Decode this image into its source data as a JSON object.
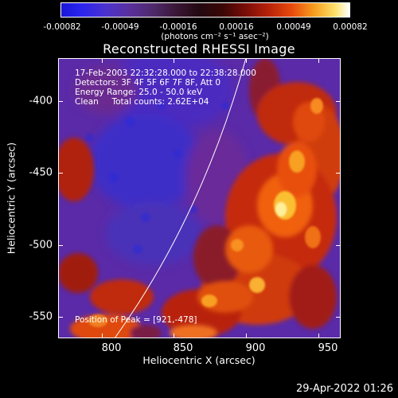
{
  "colorbar": {
    "ticks": [
      "-0.00082",
      "-0.00049",
      "-0.00016",
      "0.00016",
      "0.00049",
      "0.00082"
    ],
    "units": "(photons cm⁻² s⁻¹ asec⁻²)"
  },
  "title": "Reconstructed RHESSI Image",
  "info": {
    "time_range": "17-Feb-2003 22:32:28.000 to 22:38:28.000",
    "detectors": "Detectors: 3F 4F 5F 6F 7F 8F, Att 0",
    "energy_range": "Energy Range: 25.0 - 50.0 keV",
    "method_counts": "Clean     Total counts: 2.62E+04",
    "peak_position": "Position of Peak = [921,-478]"
  },
  "axes": {
    "x_title": "Heliocentric X (arcsec)",
    "y_title": "Heliocentric Y (arcsec)",
    "x_ticks": [
      "800",
      "850",
      "900",
      "950"
    ],
    "y_ticks": [
      "-400",
      "-450",
      "-500",
      "-550"
    ],
    "x_range": [
      765,
      960
    ],
    "y_range": [
      -555,
      -372
    ]
  },
  "timestamp": "29-Apr-2022 01:26"
}
